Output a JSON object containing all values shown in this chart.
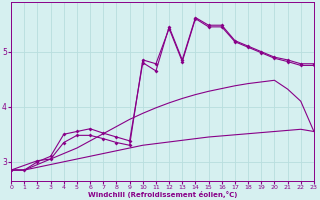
{
  "xlabel": "Windchill (Refroidissement éolien,°C)",
  "bg_color": "#d6f0f0",
  "grid_color": "#b8dede",
  "line_color": "#880088",
  "xlim": [
    0,
    23
  ],
  "ylim": [
    2.65,
    5.9
  ],
  "yticks": [
    3,
    4,
    5
  ],
  "xticks": [
    0,
    1,
    2,
    3,
    4,
    5,
    6,
    7,
    8,
    9,
    10,
    11,
    12,
    13,
    14,
    15,
    16,
    17,
    18,
    19,
    20,
    21,
    22,
    23
  ],
  "s1_x": [
    0,
    1,
    2,
    3,
    4,
    5,
    6,
    7,
    8,
    9,
    10,
    11,
    12,
    13,
    14,
    15,
    16,
    17,
    18,
    19,
    20,
    21,
    22,
    23
  ],
  "s1_y": [
    2.85,
    2.85,
    2.9,
    2.95,
    3.0,
    3.05,
    3.1,
    3.15,
    3.2,
    3.25,
    3.3,
    3.33,
    3.36,
    3.39,
    3.42,
    3.45,
    3.47,
    3.49,
    3.51,
    3.53,
    3.55,
    3.57,
    3.59,
    3.55
  ],
  "s2_x": [
    0,
    1,
    2,
    3,
    4,
    5,
    6,
    7,
    8,
    9,
    10,
    11,
    12,
    13,
    14,
    15,
    16,
    17,
    18,
    19,
    20,
    21,
    22,
    23
  ],
  "s2_y": [
    2.85,
    2.85,
    2.95,
    3.05,
    3.15,
    3.25,
    3.38,
    3.51,
    3.64,
    3.77,
    3.88,
    3.98,
    4.07,
    4.15,
    4.22,
    4.28,
    4.33,
    4.38,
    4.42,
    4.45,
    4.48,
    4.32,
    4.1,
    3.55
  ],
  "s3_x": [
    0,
    1,
    2,
    3,
    4,
    5,
    6,
    7,
    8,
    9,
    10,
    11,
    12,
    13,
    14,
    15,
    16,
    17,
    18,
    19,
    20,
    21,
    22,
    23
  ],
  "s3_y": [
    2.85,
    2.85,
    3.0,
    3.1,
    3.5,
    3.55,
    3.6,
    3.52,
    3.45,
    3.38,
    4.8,
    4.65,
    5.45,
    4.85,
    5.62,
    5.48,
    5.48,
    5.2,
    5.1,
    5.0,
    4.9,
    4.85,
    4.78,
    4.78
  ],
  "s4_x": [
    0,
    2,
    3,
    4,
    5,
    6,
    7,
    8,
    9,
    10,
    11,
    12,
    13,
    14,
    15,
    16,
    17,
    18,
    19,
    20,
    21,
    22,
    23
  ],
  "s4_y": [
    2.85,
    3.02,
    3.05,
    3.35,
    3.48,
    3.48,
    3.42,
    3.35,
    3.3,
    4.85,
    4.78,
    5.42,
    4.82,
    5.6,
    5.45,
    5.45,
    5.18,
    5.08,
    4.98,
    4.88,
    4.82,
    4.75,
    4.75
  ]
}
